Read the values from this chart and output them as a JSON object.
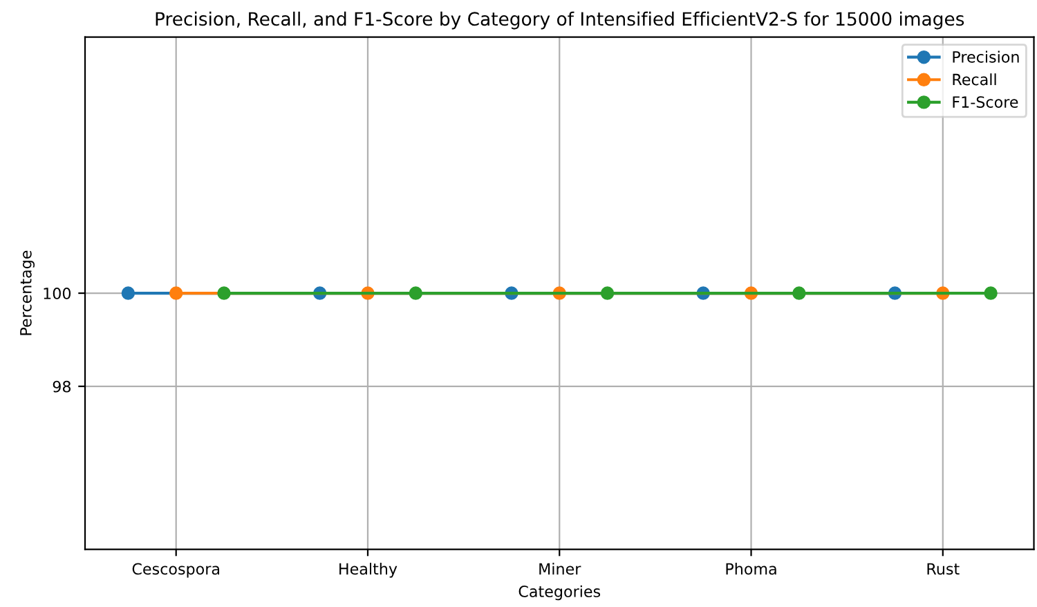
{
  "chart_data": {
    "type": "line",
    "title": "Precision, Recall, and F1-Score by Category of Intensified EfficientV2-S for 15000 images",
    "xlabel": "Categories",
    "ylabel": "Percentage",
    "categories": [
      "Cescospora",
      "Healthy",
      "Miner",
      "Phoma",
      "Rust"
    ],
    "series": [
      {
        "name": "Precision",
        "color": "#1f77b4",
        "values": [
          100,
          100,
          100,
          100,
          100
        ]
      },
      {
        "name": "Recall",
        "color": "#ff7f0e",
        "values": [
          100,
          100,
          100,
          100,
          100
        ]
      },
      {
        "name": "F1-Score",
        "color": "#2ca02c",
        "values": [
          100,
          100,
          100,
          100,
          100
        ]
      }
    ],
    "ylim": [
      94.5,
      105.5
    ],
    "yticks": [
      98,
      100
    ],
    "grid": true,
    "legend": "top right",
    "marker": "circle",
    "line_style": "solid"
  }
}
